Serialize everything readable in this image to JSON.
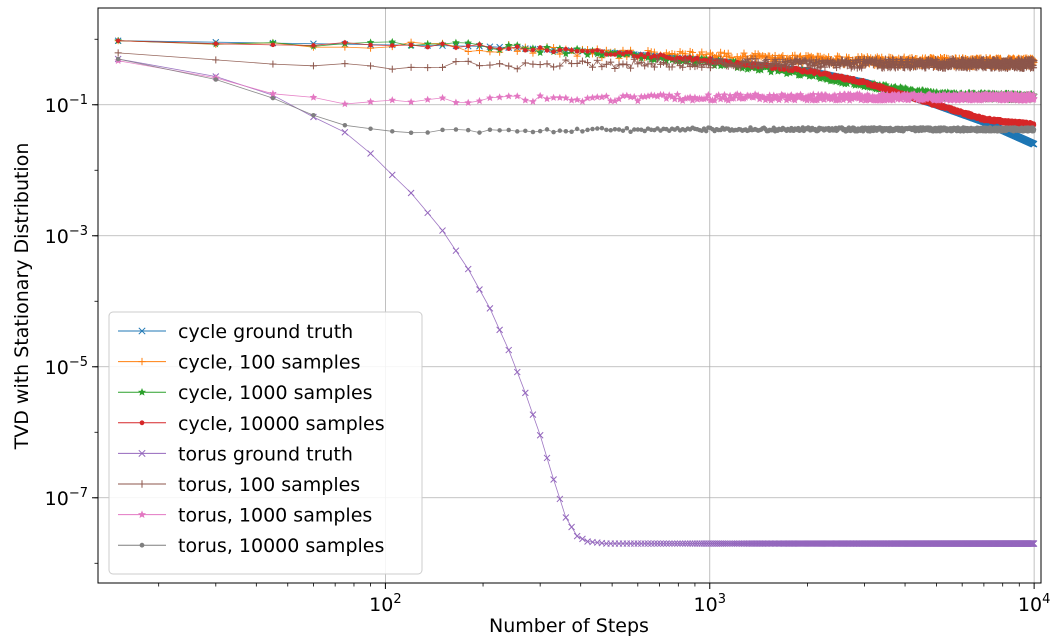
{
  "chart_data": {
    "type": "line",
    "xscale": "log",
    "yscale": "log",
    "xlabel": "Number of Steps",
    "ylabel": "TVD with Stationary Distribution",
    "xlim": [
      13,
      10500
    ],
    "ylim": [
      5e-09,
      3
    ],
    "grid": true,
    "legend_position": "lower left",
    "x_ticks": [
      {
        "value": 100,
        "base": "10",
        "exp": "2"
      },
      {
        "value": 1000,
        "base": "10",
        "exp": "3"
      },
      {
        "value": 10000,
        "base": "10",
        "exp": "4"
      }
    ],
    "y_ticks": [
      {
        "value": 1e-07,
        "base": "10",
        "exp": "−7"
      },
      {
        "value": 1e-05,
        "base": "10",
        "exp": "−5"
      },
      {
        "value": 0.001,
        "base": "10",
        "exp": "−3"
      },
      {
        "value": 0.1,
        "base": "10",
        "exp": "−1"
      }
    ],
    "x_step": 15,
    "x_max": 10000,
    "series": [
      {
        "name": "cycle ground truth",
        "color": "#1f77b4",
        "marker": "x",
        "anchors": [
          [
            15,
            0.95
          ],
          [
            200,
            0.78
          ],
          [
            500,
            0.62
          ],
          [
            1000,
            0.48
          ],
          [
            2000,
            0.33
          ],
          [
            3000,
            0.22
          ],
          [
            5000,
            0.1
          ],
          [
            7000,
            0.055
          ],
          [
            10000,
            0.025
          ]
        ]
      },
      {
        "name": "cycle, 100 samples",
        "color": "#ff7f0e",
        "marker": "+",
        "anchors": [
          [
            15,
            0.95
          ],
          [
            200,
            0.75
          ],
          [
            500,
            0.6
          ],
          [
            1000,
            0.55
          ],
          [
            2000,
            0.48
          ],
          [
            5000,
            0.45
          ],
          [
            10000,
            0.44
          ]
        ]
      },
      {
        "name": "cycle, 1000 samples",
        "color": "#2ca02c",
        "marker": "star",
        "anchors": [
          [
            15,
            0.95
          ],
          [
            200,
            0.78
          ],
          [
            500,
            0.6
          ],
          [
            1000,
            0.45
          ],
          [
            2000,
            0.3
          ],
          [
            3000,
            0.2
          ],
          [
            5000,
            0.14
          ],
          [
            10000,
            0.13
          ]
        ]
      },
      {
        "name": "cycle, 10000 samples",
        "color": "#d62728",
        "marker": "dot",
        "anchors": [
          [
            15,
            0.95
          ],
          [
            200,
            0.78
          ],
          [
            500,
            0.62
          ],
          [
            1000,
            0.48
          ],
          [
            2000,
            0.33
          ],
          [
            3000,
            0.22
          ],
          [
            5000,
            0.1
          ],
          [
            7000,
            0.06
          ],
          [
            10000,
            0.05
          ]
        ]
      },
      {
        "name": "torus ground truth",
        "color": "#9467bd",
        "marker": "x",
        "anchors": [
          [
            15,
            0.5
          ],
          [
            30,
            0.27
          ],
          [
            45,
            0.14
          ],
          [
            60,
            0.065
          ],
          [
            75,
            0.038
          ],
          [
            90,
            0.018
          ],
          [
            105,
            0.0085
          ],
          [
            120,
            0.0045
          ],
          [
            150,
            0.0012
          ],
          [
            180,
            0.00031
          ],
          [
            210,
            7.8e-05
          ],
          [
            240,
            1.8e-05
          ],
          [
            270,
            4e-06
          ],
          [
            300,
            9e-07
          ],
          [
            330,
            1.9e-07
          ],
          [
            360,
            5e-08
          ],
          [
            390,
            2.6e-08
          ],
          [
            420,
            2.15e-08
          ],
          [
            480,
            2e-08
          ],
          [
            10000,
            2e-08
          ]
        ]
      },
      {
        "name": "torus, 100 samples",
        "color": "#8c564b",
        "marker": "+",
        "anchors": [
          [
            15,
            0.62
          ],
          [
            30,
            0.47
          ],
          [
            60,
            0.4
          ],
          [
            200,
            0.4
          ],
          [
            500,
            0.42
          ],
          [
            1000,
            0.43
          ],
          [
            10000,
            0.42
          ]
        ]
      },
      {
        "name": "torus, 1000 samples",
        "color": "#e377c2",
        "marker": "star",
        "anchors": [
          [
            15,
            0.47
          ],
          [
            30,
            0.25
          ],
          [
            45,
            0.16
          ],
          [
            60,
            0.125
          ],
          [
            75,
            0.11
          ],
          [
            100,
            0.12
          ],
          [
            200,
            0.12
          ],
          [
            500,
            0.125
          ],
          [
            1000,
            0.13
          ],
          [
            10000,
            0.13
          ]
        ]
      },
      {
        "name": "torus, 10000 samples",
        "color": "#7f7f7f",
        "marker": "dot",
        "anchors": [
          [
            15,
            0.5
          ],
          [
            30,
            0.26
          ],
          [
            45,
            0.13
          ],
          [
            60,
            0.07
          ],
          [
            75,
            0.05
          ],
          [
            90,
            0.042
          ],
          [
            120,
            0.04
          ],
          [
            200,
            0.04
          ],
          [
            1000,
            0.042
          ],
          [
            10000,
            0.042
          ]
        ]
      }
    ]
  }
}
